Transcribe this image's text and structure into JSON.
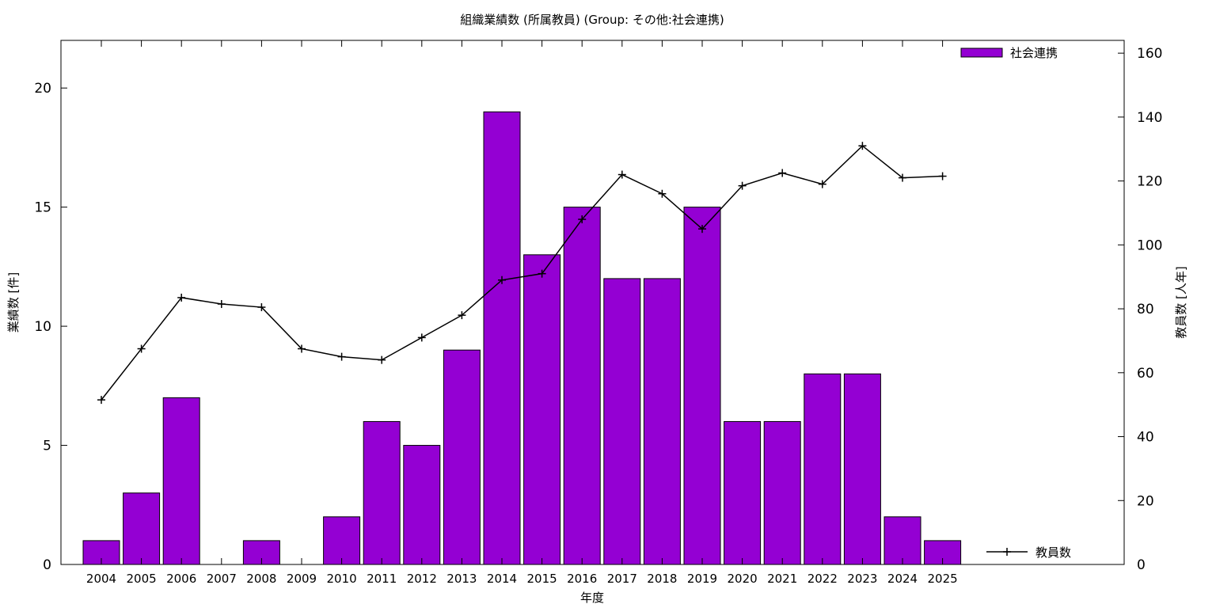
{
  "chart_data": {
    "type": "bar",
    "title": "組織業績数 (所属教員) (Group: その他:社会連携)",
    "xlabel": "年度",
    "ylabel": "業績数 [件]",
    "y2label": "教員数 [人年]",
    "categories": [
      "2004",
      "2005",
      "2006",
      "2007",
      "2008",
      "2009",
      "2010",
      "2011",
      "2012",
      "2013",
      "2014",
      "2015",
      "2016",
      "2017",
      "2018",
      "2019",
      "2020",
      "2021",
      "2022",
      "2023",
      "2024",
      "2025"
    ],
    "series": [
      {
        "name": "社会連携",
        "type": "bar",
        "axis": "left",
        "color": "#9400d3",
        "values": [
          1,
          3,
          7,
          0,
          1,
          0,
          2,
          6,
          5,
          9,
          19,
          13,
          15,
          12,
          12,
          15,
          6,
          6,
          8,
          8,
          2,
          1
        ]
      },
      {
        "name": "教員数",
        "type": "line",
        "axis": "right",
        "color": "#000000",
        "values": [
          51.5,
          67.5,
          83.5,
          81.5,
          80.5,
          67.5,
          65,
          64,
          71,
          78,
          89,
          91,
          108,
          122,
          116,
          105,
          118.5,
          122.5,
          119,
          131,
          121,
          121.5
        ]
      }
    ],
    "ylim": [
      0,
      22
    ],
    "yticks": [
      0,
      5,
      10,
      15,
      20
    ],
    "y2lim": [
      0,
      164
    ],
    "y2ticks": [
      0,
      20,
      40,
      60,
      80,
      100,
      120,
      140,
      160
    ],
    "legend_placement": "top-right (bars), bottom-right (line)",
    "grid": false
  }
}
